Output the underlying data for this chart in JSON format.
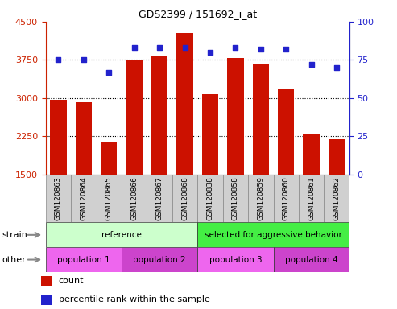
{
  "title": "GDS2399 / 151692_i_at",
  "samples": [
    "GSM120863",
    "GSM120864",
    "GSM120865",
    "GSM120866",
    "GSM120867",
    "GSM120868",
    "GSM120838",
    "GSM120858",
    "GSM120859",
    "GSM120860",
    "GSM120861",
    "GSM120862"
  ],
  "counts": [
    2960,
    2920,
    2150,
    3750,
    3820,
    4280,
    3070,
    3790,
    3680,
    3170,
    2290,
    2200
  ],
  "percentile_ranks": [
    75,
    75,
    67,
    83,
    83,
    83,
    80,
    83,
    82,
    82,
    72,
    70
  ],
  "ylim_left": [
    1500,
    4500
  ],
  "ylim_right": [
    0,
    100
  ],
  "yticks_left": [
    1500,
    2250,
    3000,
    3750,
    4500
  ],
  "yticks_right": [
    0,
    25,
    50,
    75,
    100
  ],
  "bar_color": "#cc1100",
  "dot_color": "#2222cc",
  "strain_groups": [
    {
      "label": "reference",
      "start": 0,
      "end": 5,
      "color": "#ccffcc"
    },
    {
      "label": "selected for aggressive behavior",
      "start": 6,
      "end": 11,
      "color": "#44ee44"
    }
  ],
  "other_groups": [
    {
      "label": "population 1",
      "start": 0,
      "end": 2,
      "color": "#ee66ee"
    },
    {
      "label": "population 2",
      "start": 3,
      "end": 5,
      "color": "#cc44cc"
    },
    {
      "label": "population 3",
      "start": 6,
      "end": 8,
      "color": "#ee66ee"
    },
    {
      "label": "population 4",
      "start": 9,
      "end": 11,
      "color": "#cc44cc"
    }
  ],
  "legend_count_label": "count",
  "legend_pct_label": "percentile rank within the sample",
  "strain_label": "strain",
  "other_label": "other",
  "tick_color_left": "#cc2200",
  "tick_color_right": "#2222cc",
  "sample_box_color": "#d0d0d0",
  "grid_yticks": [
    2250,
    3000,
    3750
  ]
}
